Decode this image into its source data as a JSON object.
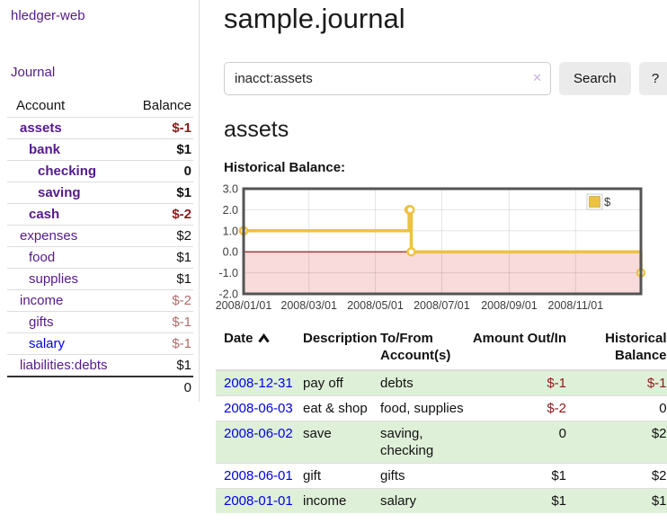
{
  "app": {
    "brand": "hledger-web",
    "nav": {
      "journal": "Journal"
    }
  },
  "sidebar": {
    "headers": {
      "account": "Account",
      "balance": "Balance"
    },
    "accounts": [
      {
        "name": "assets",
        "balance": "$-1"
      },
      {
        "name": "bank",
        "balance": "$1"
      },
      {
        "name": "checking",
        "balance": "0"
      },
      {
        "name": "saving",
        "balance": "$1"
      },
      {
        "name": "cash",
        "balance": "$-2"
      },
      {
        "name": "expenses",
        "balance": "$2"
      },
      {
        "name": "food",
        "balance": "$1"
      },
      {
        "name": "supplies",
        "balance": "$1"
      },
      {
        "name": "income",
        "balance": "$-2"
      },
      {
        "name": "gifts",
        "balance": "$-1"
      },
      {
        "name": "salary",
        "balance": "$-1"
      },
      {
        "name": "liabilities:debts",
        "balance": "$1"
      }
    ],
    "total": "0"
  },
  "main": {
    "title": "sample.journal",
    "search": {
      "value": "inacct:assets",
      "clear_icon": "✕",
      "search_button": "Search",
      "help_button": "?"
    },
    "account_heading": "assets",
    "section_label": "Historical Balance:",
    "register": {
      "headers": {
        "date": "Date",
        "description": "Description",
        "accounts": "To/From Account(s)",
        "amount": "Amount Out/In",
        "balance": "Historical Balance"
      },
      "rows": [
        {
          "date": "2008-12-31",
          "description": "pay off",
          "accounts": "debts",
          "amount": "$-1",
          "balance": "$-1"
        },
        {
          "date": "2008-06-03",
          "description": "eat & shop",
          "accounts": "food, supplies",
          "amount": "$-2",
          "balance": "0"
        },
        {
          "date": "2008-06-02",
          "description": "save",
          "accounts": "saving, checking",
          "amount": "0",
          "balance": "$2"
        },
        {
          "date": "2008-06-01",
          "description": "gift",
          "accounts": "gifts",
          "amount": "$1",
          "balance": "$2"
        },
        {
          "date": "2008-01-01",
          "description": "income",
          "accounts": "salary",
          "amount": "$1",
          "balance": "$1"
        }
      ]
    }
  },
  "chart_data": {
    "type": "line",
    "title": "Historical Balance",
    "step": true,
    "x_range": [
      "2008-01-01",
      "2008-12-31"
    ],
    "ylim": [
      -2,
      3
    ],
    "x_ticks": [
      "2008/01/01",
      "2008/03/01",
      "2008/05/01",
      "2008/07/01",
      "2008/09/01",
      "2008/11/01"
    ],
    "y_ticks": [
      "3.0",
      "2.0",
      "1.0",
      "0.0",
      "-1.0",
      "-2.0"
    ],
    "legend": [
      {
        "label": "$",
        "color": "#edc240"
      }
    ],
    "series": [
      {
        "name": "$",
        "points": [
          {
            "date": "2008-01-01",
            "value": 1
          },
          {
            "date": "2008-06-01",
            "value": 2
          },
          {
            "date": "2008-06-02",
            "value": 2
          },
          {
            "date": "2008-06-03",
            "value": 0
          },
          {
            "date": "2008-12-31",
            "value": -1
          }
        ]
      }
    ],
    "line_color": "#edc240",
    "marker_fill": "#ffffff",
    "negative_region_color": "#f9dbdb",
    "zero_line_color": "#8b0000",
    "grid_color": "rgba(0,0,0,0.10)",
    "border_color": "#545454",
    "tick_label_color": "#3c3c3c"
  },
  "colors": {
    "link_purple": "#551a8b",
    "link_blue": "#0000e8",
    "negative": "#8b1a1a",
    "negative_muted": "#b36b6b",
    "row_stripe_green": "#dff0d8",
    "button_gray": "#ebebeb"
  }
}
